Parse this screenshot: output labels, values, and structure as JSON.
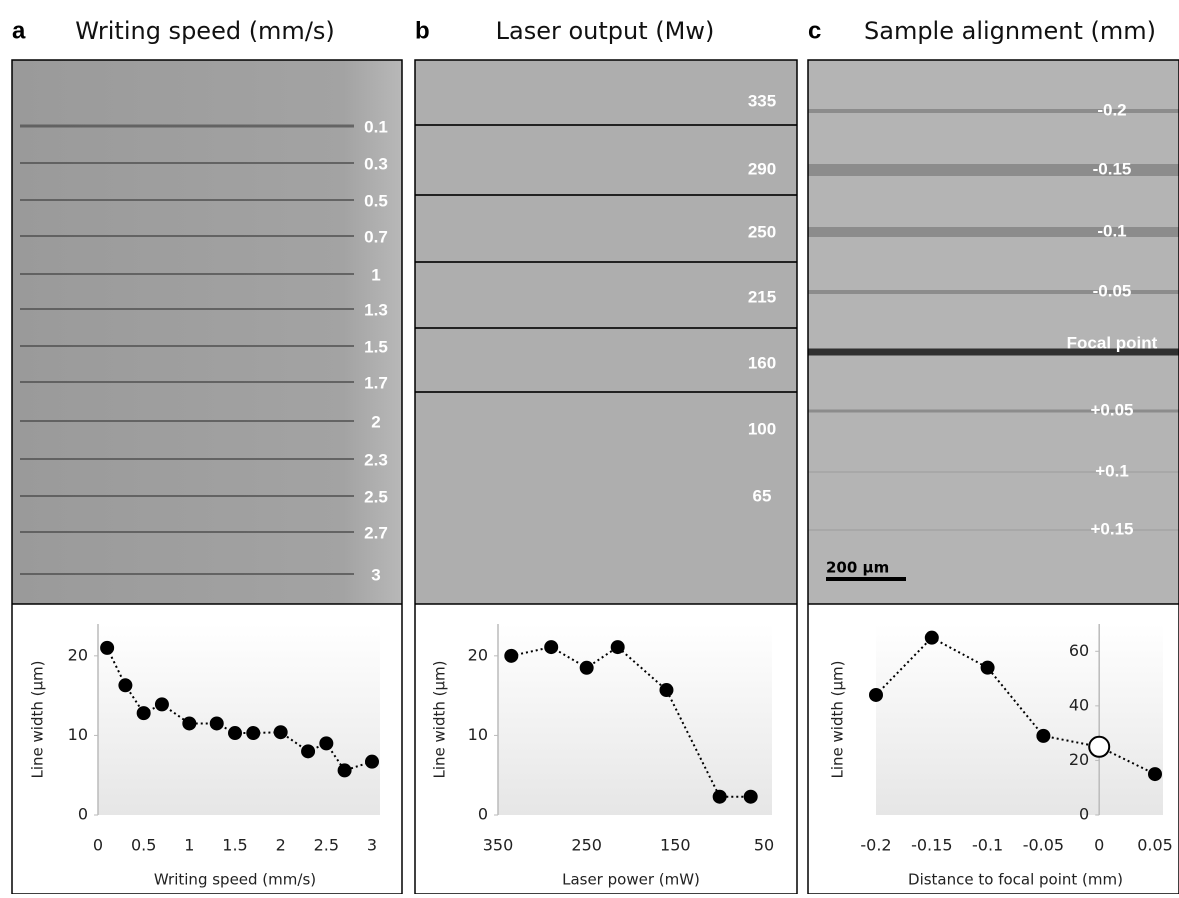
{
  "panels": [
    {
      "letter": "a",
      "title": "Writing speed (mm/s)",
      "image_labels": [
        "0.1",
        "0.3",
        "0.5",
        "0.7",
        "1",
        "1.3",
        "1.5",
        "1.7",
        "2",
        "2.3",
        "2.5",
        "2.7",
        "3"
      ]
    },
    {
      "letter": "b",
      "title": "Laser output (Mw)",
      "image_labels": [
        "335",
        "290",
        "250",
        "215",
        "160",
        "100",
        "65"
      ]
    },
    {
      "letter": "c",
      "title": "Sample alignment (mm)",
      "image_labels": [
        "-0.2",
        "-0.15",
        "-0.1",
        "-0.05",
        "Focal point",
        "+0.05",
        "+0.1",
        "+0.15"
      ],
      "scale_bar": "200 µm"
    }
  ],
  "chart_data": [
    {
      "type": "line",
      "x_label": "Writing speed (mm/s)",
      "y_label": "Line width (µm)",
      "x": [
        0.1,
        0.3,
        0.5,
        0.7,
        1,
        1.3,
        1.5,
        1.7,
        2,
        2.3,
        2.5,
        2.7,
        3
      ],
      "values": [
        21,
        16.3,
        12.8,
        13.9,
        11.5,
        11.5,
        10.3,
        10.3,
        10.4,
        8,
        9,
        5.6,
        6.7
      ],
      "xlim": [
        0,
        3
      ],
      "xticks": [
        0,
        0.5,
        1,
        1.5,
        2,
        2.5,
        3
      ],
      "ylim": [
        0,
        24
      ],
      "yticks": [
        0,
        10,
        20
      ],
      "color": "#000000"
    },
    {
      "type": "line",
      "x_label": "Laser power (mW)",
      "y_label": "Line width (µm)",
      "x": [
        335,
        290,
        250,
        215,
        160,
        100,
        65
      ],
      "values": [
        20,
        21.1,
        18.5,
        21.1,
        15.7,
        2.3,
        2.3
      ],
      "xlim": [
        350,
        50
      ],
      "xticks": [
        350,
        250,
        150,
        50
      ],
      "ylim": [
        0,
        24
      ],
      "yticks": [
        0,
        10,
        20
      ],
      "color": "#000000"
    },
    {
      "type": "line",
      "x_label": "Distance to focal point (mm)",
      "y_label": "Line width (µm)",
      "x": [
        -0.2,
        -0.15,
        -0.1,
        -0.05,
        0,
        0.05
      ],
      "values": [
        44,
        65,
        54,
        29,
        25,
        15
      ],
      "markers": [
        "filled",
        "filled",
        "filled",
        "filled",
        "open",
        "filled"
      ],
      "xlim": [
        -0.2,
        0.05
      ],
      "xticks": [
        -0.2,
        -0.15,
        -0.1,
        -0.05,
        0,
        0.05
      ],
      "ylim": [
        0,
        70
      ],
      "yticks": [
        0,
        20,
        40,
        60
      ],
      "color": "#000000"
    }
  ]
}
